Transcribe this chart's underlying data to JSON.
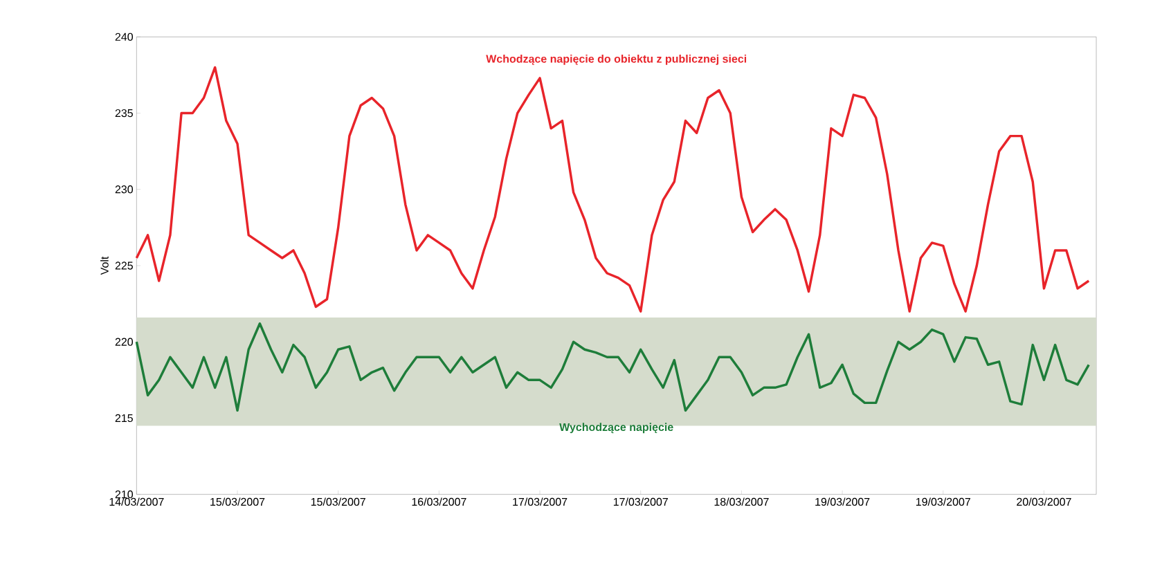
{
  "chart_data": {
    "type": "line",
    "ylabel": "Volt",
    "grid": false,
    "marker": "none",
    "line_style": "solid",
    "ylim": [
      210,
      240
    ],
    "yticks": [
      210,
      215,
      220,
      225,
      230,
      235,
      240
    ],
    "categories": [
      "14/03/2007",
      null,
      null,
      null,
      null,
      null,
      null,
      null,
      null,
      "15/03/2007",
      null,
      null,
      null,
      null,
      null,
      null,
      null,
      null,
      "15/03/2007",
      null,
      null,
      null,
      null,
      null,
      null,
      null,
      null,
      "16/03/2007",
      null,
      null,
      null,
      null,
      null,
      null,
      null,
      null,
      "17/03/2007",
      null,
      null,
      null,
      null,
      null,
      null,
      null,
      null,
      "17/03/2007",
      null,
      null,
      null,
      null,
      null,
      null,
      null,
      null,
      "18/03/2007",
      null,
      null,
      null,
      null,
      null,
      null,
      null,
      null,
      "19/03/2007",
      null,
      null,
      null,
      null,
      null,
      null,
      null,
      null,
      "19/03/2007",
      null,
      null,
      null,
      null,
      null,
      null,
      null,
      null,
      "20/03/2007",
      null,
      null,
      null,
      null
    ],
    "bands": [
      {
        "axis": "y",
        "from": 214.5,
        "to": 221.6,
        "color": "#d5dccc"
      }
    ],
    "series": [
      {
        "name": "Wchodzące napięcie do obiektu z publicznej sieci",
        "color": "#e8242a",
        "values": [
          225.5,
          227,
          224,
          227,
          235,
          235,
          236,
          238,
          234.5,
          233,
          227,
          226.5,
          226,
          225.5,
          226,
          224.5,
          222.3,
          222.8,
          227.5,
          233.5,
          235.5,
          236,
          235.3,
          233.5,
          229,
          226,
          227,
          226.5,
          226,
          224.5,
          223.5,
          226,
          228.2,
          232,
          235,
          236.2,
          237.3,
          234,
          234.5,
          229.8,
          228,
          225.5,
          224.5,
          224.2,
          223.7,
          222,
          227,
          229.3,
          230.5,
          234.5,
          233.7,
          236,
          236.5,
          235,
          229.5,
          227.2,
          228,
          228.7,
          228,
          226,
          223.3,
          227,
          234,
          233.5,
          236.2,
          236,
          234.7,
          231,
          226,
          222,
          225.5,
          226.5,
          226.3,
          223.8,
          222,
          225,
          229,
          232.5,
          233.5,
          233.5,
          230.5,
          223.5,
          226,
          226,
          223.5,
          224
        ]
      },
      {
        "name": "Wychodzące napięcie",
        "color": "#1e7d3a",
        "values": [
          220,
          216.5,
          217.5,
          219,
          218,
          217,
          219,
          217,
          219,
          215.5,
          219.5,
          221.2,
          219.5,
          218,
          219.8,
          219,
          217,
          218,
          219.5,
          219.7,
          217.5,
          218,
          218.3,
          216.8,
          218,
          219,
          219,
          219,
          218,
          219,
          218,
          218.5,
          219,
          217,
          218,
          217.5,
          217.5,
          217,
          218.2,
          220,
          219.5,
          219.3,
          219,
          219,
          218,
          219.5,
          218.2,
          217,
          218.8,
          215.5,
          216.5,
          217.5,
          219,
          219,
          218,
          216.5,
          217,
          217,
          217.2,
          219,
          220.5,
          217,
          217.3,
          218.5,
          216.6,
          216,
          216,
          218.1,
          220,
          219.5,
          220,
          220.8,
          220.5,
          218.7,
          220.3,
          220.2,
          218.5,
          218.7,
          216.1,
          215.9,
          219.8,
          217.5,
          219.8,
          217.5,
          217.2,
          218.5
        ]
      }
    ]
  }
}
